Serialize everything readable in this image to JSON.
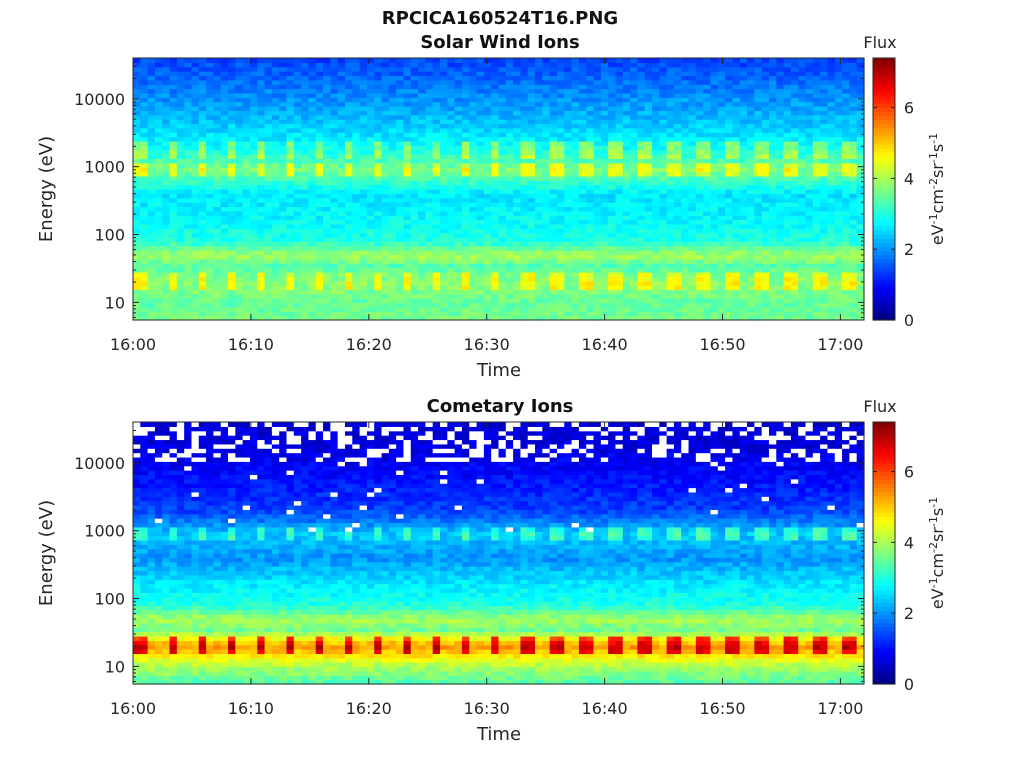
{
  "figure_title": "RPCICA160524T16.PNG",
  "colorbar": {
    "label": "Flux",
    "unit_base": "eV",
    "unit_parts": [
      "-1",
      "cm",
      "-2",
      "sr",
      "-1",
      "s",
      "-1"
    ],
    "ticks": [
      "0",
      "2",
      "4",
      "6"
    ],
    "range": [
      0,
      7.4
    ],
    "colormap": "jet"
  },
  "chart_data": [
    {
      "type": "heatmap",
      "title": "Solar Wind Ions",
      "xlabel": "Time",
      "ylabel": "Energy (eV)",
      "yscale": "log",
      "ylim": [
        5.5,
        40000
      ],
      "xlim": [
        "16:00",
        "17:02"
      ],
      "xticks": [
        "16:00",
        "16:10",
        "16:20",
        "16:30",
        "16:40",
        "16:50",
        "17:00"
      ],
      "yticks": [
        "10",
        "100",
        "1000",
        "10000"
      ],
      "flux_profile_by_energy": [
        {
          "energy": 6,
          "flux": 3.6
        },
        {
          "energy": 10,
          "flux": 3.5
        },
        {
          "energy": 20,
          "flux": 3.8
        },
        {
          "energy": 35,
          "flux": 3.4
        },
        {
          "energy": 50,
          "flux": 4.0
        },
        {
          "energy": 80,
          "flux": 3.0
        },
        {
          "energy": 150,
          "flux": 2.8
        },
        {
          "energy": 400,
          "flux": 2.6
        },
        {
          "energy": 900,
          "flux": 3.7
        },
        {
          "energy": 1800,
          "flux": 2.9
        },
        {
          "energy": 5000,
          "flux": 2.3
        },
        {
          "energy": 15000,
          "flux": 1.8
        },
        {
          "energy": 40000,
          "flux": 1.4
        }
      ],
      "pulse_period_min": 2.5,
      "pulse_energies_eV": [
        20,
        900,
        1800
      ]
    },
    {
      "type": "heatmap",
      "title": "Cometary Ions",
      "xlabel": "Time",
      "ylabel": "Energy (eV)",
      "yscale": "log",
      "ylim": [
        5.5,
        40000
      ],
      "xlim": [
        "16:00",
        "17:02"
      ],
      "xticks": [
        "16:00",
        "16:10",
        "16:20",
        "16:30",
        "16:40",
        "16:50",
        "17:00"
      ],
      "yticks": [
        "10",
        "100",
        "1000",
        "10000"
      ],
      "flux_profile_by_energy": [
        {
          "energy": 6,
          "flux": 3.4
        },
        {
          "energy": 10,
          "flux": 4.0
        },
        {
          "energy": 20,
          "flux": 5.4
        },
        {
          "energy": 35,
          "flux": 3.6
        },
        {
          "energy": 50,
          "flux": 4.0
        },
        {
          "energy": 80,
          "flux": 3.0
        },
        {
          "energy": 150,
          "flux": 2.7
        },
        {
          "energy": 400,
          "flux": 2.0
        },
        {
          "energy": 900,
          "flux": 2.4
        },
        {
          "energy": 2000,
          "flux": 1.4
        },
        {
          "energy": 8000,
          "flux": 0.9
        },
        {
          "energy": 20000,
          "flux": 0.7
        },
        {
          "energy": 40000,
          "flux": 0.6
        }
      ],
      "pulse_period_min": 2.5,
      "pulse_energies_eV": [
        20,
        900
      ],
      "empty_bins_above_eV": 10000
    }
  ]
}
